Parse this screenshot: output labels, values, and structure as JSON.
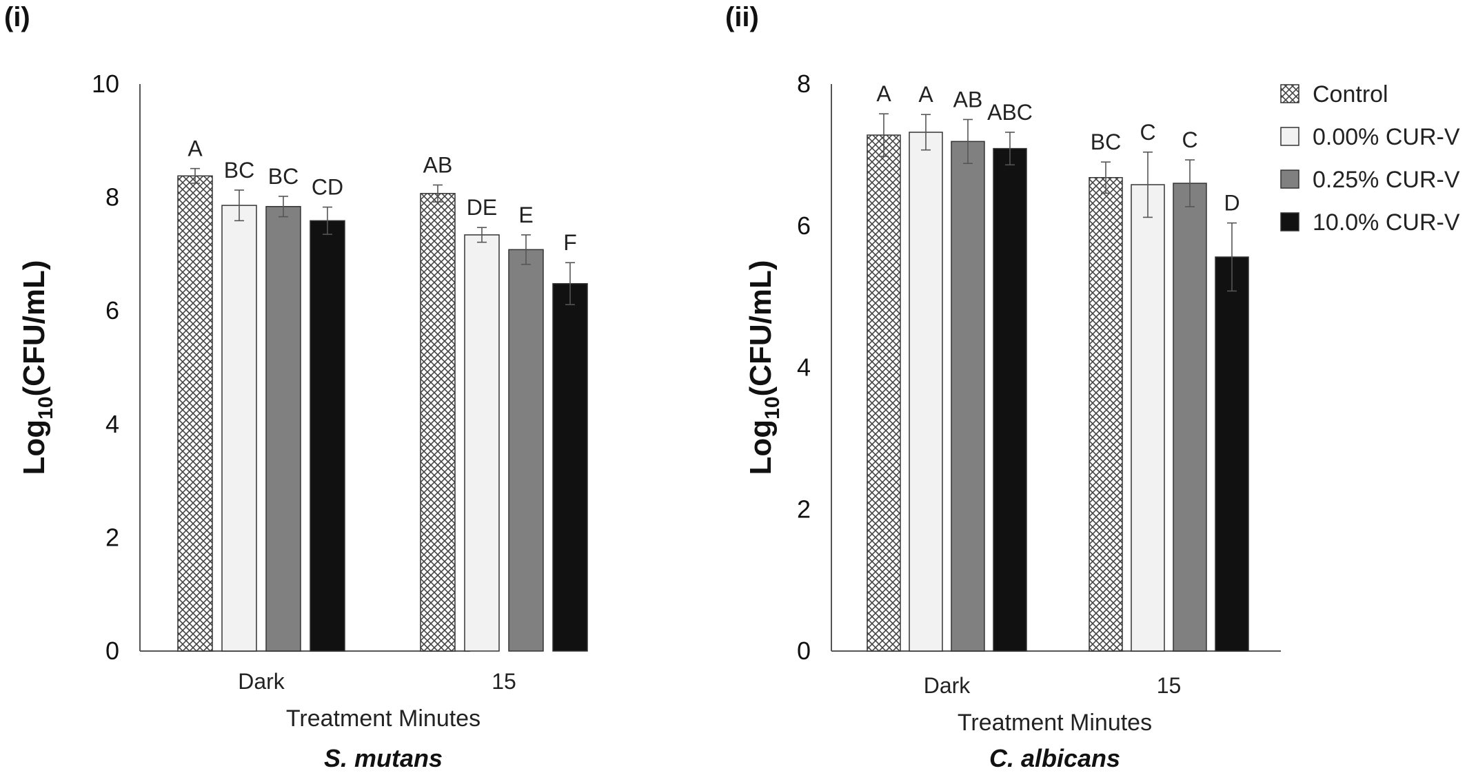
{
  "chart_data": [
    {
      "type": "bar",
      "panel": "(i)",
      "organism": "S. mutans",
      "xlabel": "Treatment Minutes",
      "ylabel": "Log10(CFU/mL)",
      "ylabel_parts": {
        "main": "Log",
        "sub": "10",
        "rest": "(CFU/mL)"
      },
      "ylim": [
        0,
        10
      ],
      "yticks": [
        0,
        2,
        4,
        6,
        8,
        10
      ],
      "categories": [
        "Dark",
        "15"
      ],
      "series": [
        {
          "name": "Control",
          "fill": "hatch",
          "values": [
            8.38,
            8.07
          ],
          "errors": [
            0.13,
            0.15
          ],
          "labels": [
            "A",
            "AB"
          ]
        },
        {
          "name": "0.00% CUR-V",
          "fill": "#f2f2f2",
          "values": [
            7.86,
            7.34
          ],
          "errors": [
            0.27,
            0.13
          ],
          "labels": [
            "BC",
            "DE"
          ]
        },
        {
          "name": "0.25% CUR-V",
          "fill": "#808080",
          "values": [
            7.84,
            7.08
          ],
          "errors": [
            0.18,
            0.26
          ],
          "labels": [
            "BC",
            "E"
          ]
        },
        {
          "name": "10.0% CUR-V",
          "fill": "#111111",
          "values": [
            7.59,
            6.48
          ],
          "errors": [
            0.24,
            0.37
          ],
          "labels": [
            "CD",
            "F"
          ]
        }
      ],
      "grid": false
    },
    {
      "type": "bar",
      "panel": "(ii)",
      "organism": "C. albicans",
      "xlabel": "Treatment Minutes",
      "ylabel": "Log10(CFU/mL)",
      "ylabel_parts": {
        "main": "Log",
        "sub": "10",
        "rest": "(CFU/mL)"
      },
      "ylim": [
        0,
        8
      ],
      "yticks": [
        0,
        2,
        4,
        6,
        8
      ],
      "categories": [
        "Dark",
        "15"
      ],
      "series": [
        {
          "name": "Control",
          "fill": "hatch",
          "values": [
            7.28,
            6.68
          ],
          "errors": [
            0.3,
            0.22
          ],
          "labels": [
            "A",
            "BC"
          ]
        },
        {
          "name": "0.00% CUR-V",
          "fill": "#f2f2f2",
          "values": [
            7.32,
            6.58
          ],
          "errors": [
            0.25,
            0.46
          ],
          "labels": [
            "A",
            "C"
          ]
        },
        {
          "name": "0.25% CUR-V",
          "fill": "#808080",
          "values": [
            7.19,
            6.6
          ],
          "errors": [
            0.31,
            0.33
          ],
          "labels": [
            "AB",
            "C"
          ]
        },
        {
          "name": "10.0% CUR-V",
          "fill": "#111111",
          "values": [
            7.09,
            5.56
          ],
          "errors": [
            0.23,
            0.48
          ],
          "labels": [
            "ABC",
            "D"
          ]
        }
      ],
      "legend": {
        "placement": "right",
        "entries": [
          "Control",
          "0.00% CUR-V",
          "0.25% CUR-V",
          "10.0% CUR-V"
        ]
      },
      "grid": false
    }
  ]
}
